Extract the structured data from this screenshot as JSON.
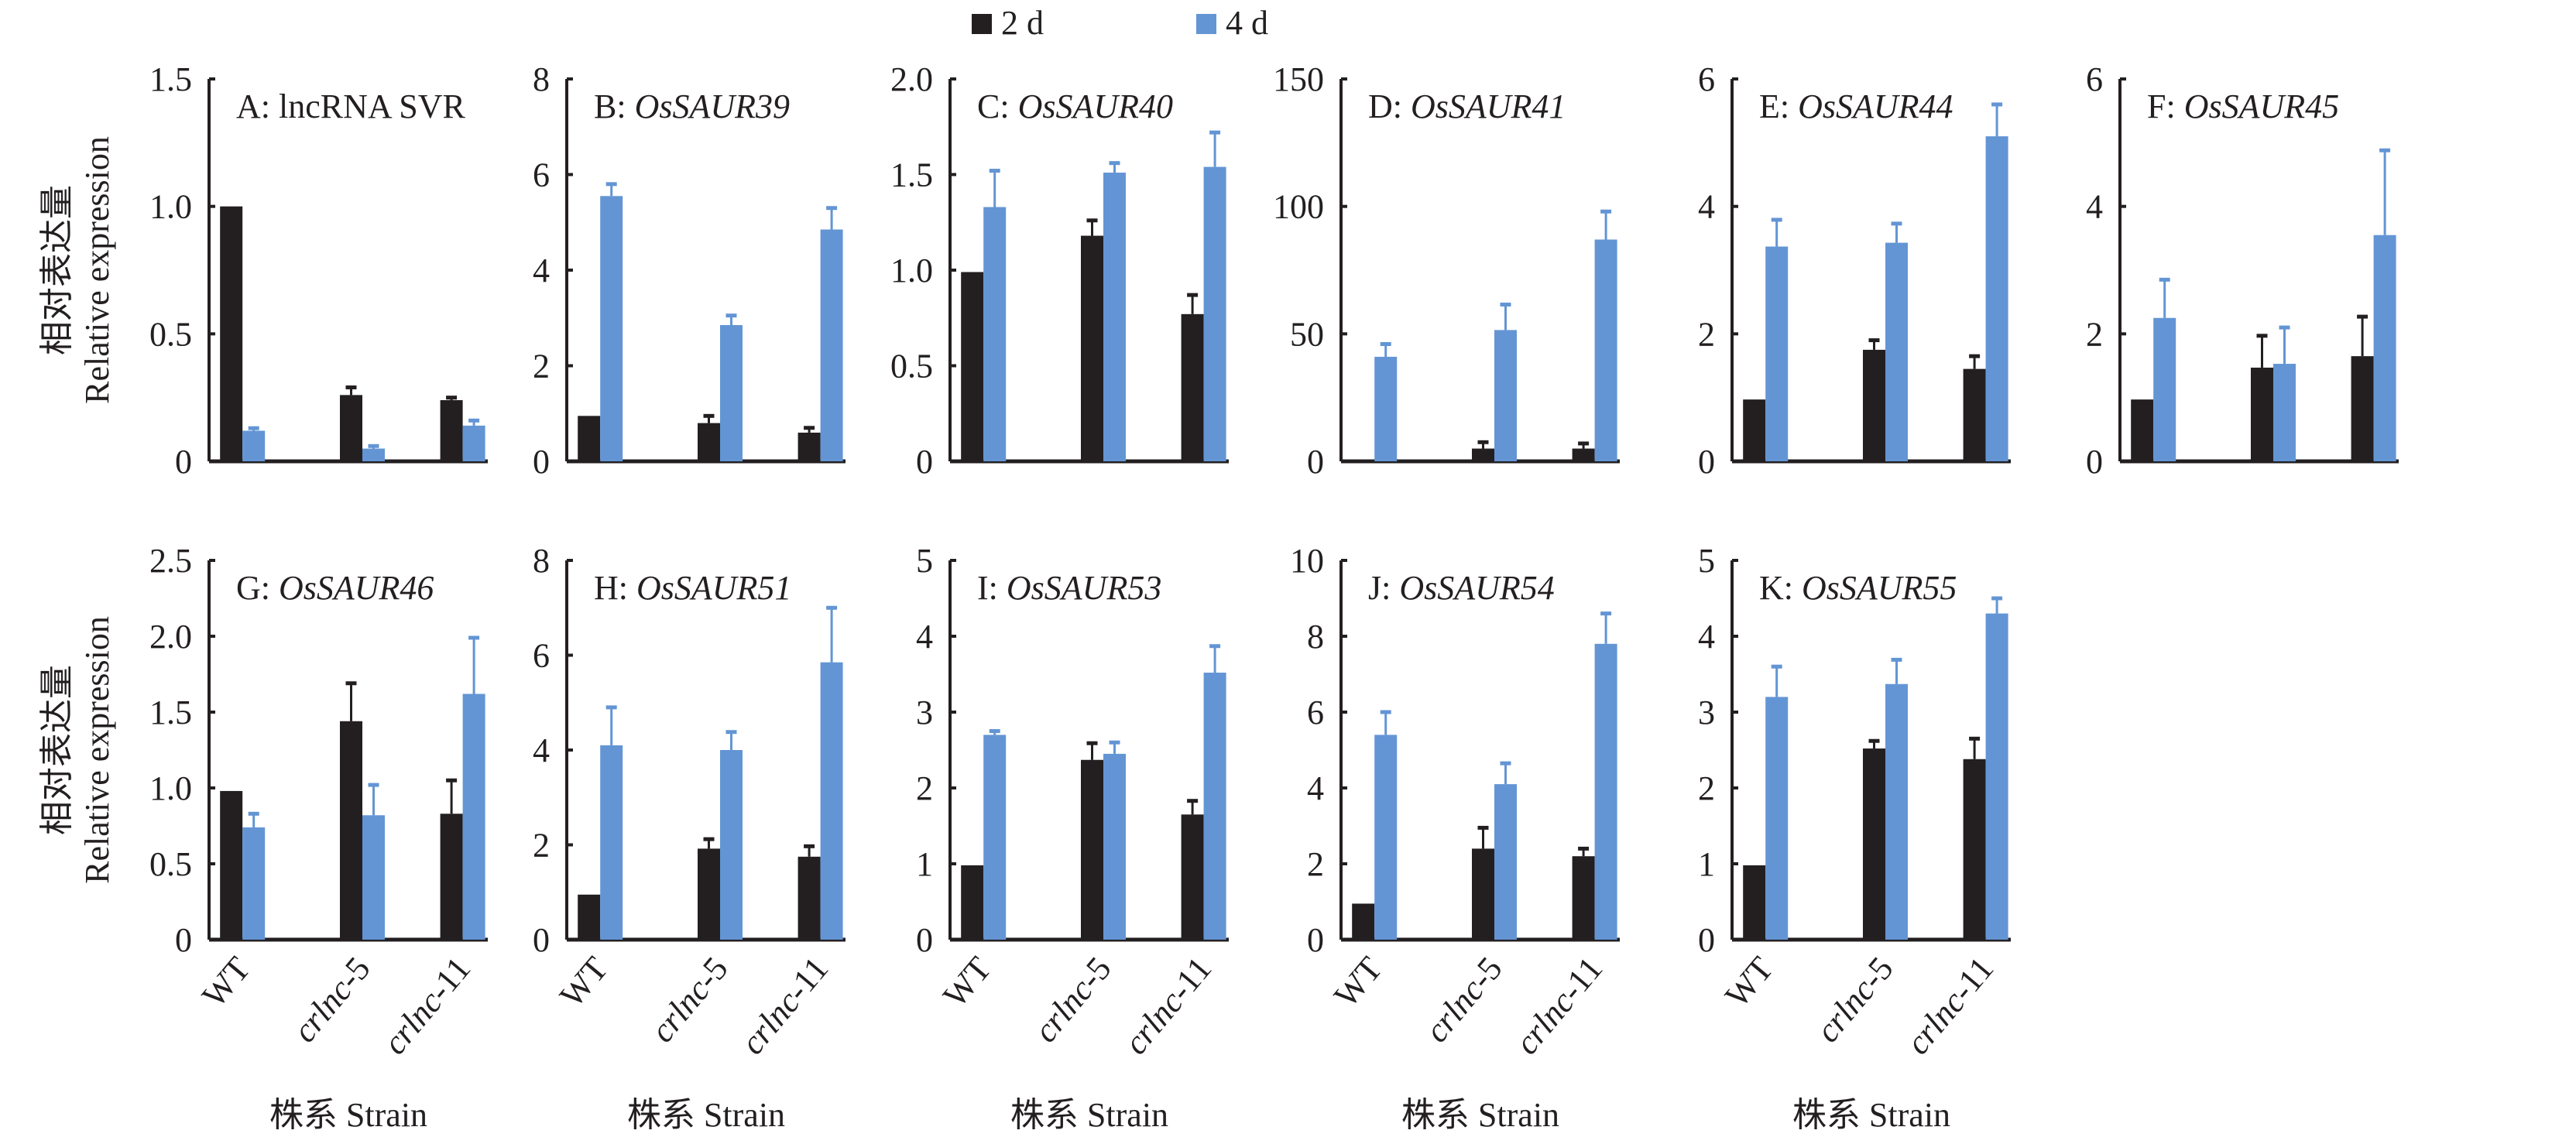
{
  "colors": {
    "2d": "#231f20",
    "4d": "#6395d4",
    "axis": "#231f20"
  },
  "legend": [
    {
      "label": "2 d",
      "color": "#231f20"
    },
    {
      "label": "4 d",
      "color": "#6395d4"
    }
  ],
  "y_label": {
    "zh": "相对表达量",
    "en": "Relative expression"
  },
  "x_label": "株系 Strain",
  "chart_data": [
    {
      "type": "bar",
      "title_prefix": "A: ",
      "title_gene": "lncRNA SVR",
      "gene_italic": false,
      "categories": [
        "WT",
        "crlnc-5",
        "crlnc-11"
      ],
      "ylim": [
        0,
        1.5
      ],
      "yticks": [
        "0",
        "0.5",
        "1.0",
        "1.5"
      ],
      "series": [
        {
          "name": "2 d",
          "values": [
            1.0,
            0.26,
            0.24
          ],
          "errors": [
            0,
            0.03,
            0.01
          ]
        },
        {
          "name": "4 d",
          "values": [
            0.12,
            0.05,
            0.14
          ],
          "errors": [
            0.01,
            0.01,
            0.02
          ]
        }
      ]
    },
    {
      "type": "bar",
      "title_prefix": "B: ",
      "title_gene": "OsSAUR39",
      "gene_italic": true,
      "categories": [
        "WT",
        "crlnc-5",
        "crlnc-11"
      ],
      "ylim": [
        0,
        8
      ],
      "yticks": [
        "0",
        "2",
        "4",
        "6",
        "8"
      ],
      "series": [
        {
          "name": "2 d",
          "values": [
            0.95,
            0.8,
            0.6
          ],
          "errors": [
            0,
            0.15,
            0.1
          ]
        },
        {
          "name": "4 d",
          "values": [
            5.55,
            2.85,
            4.85
          ],
          "errors": [
            0.25,
            0.2,
            0.45
          ]
        }
      ]
    },
    {
      "type": "bar",
      "title_prefix": "C: ",
      "title_gene": "OsSAUR40",
      "gene_italic": true,
      "categories": [
        "WT",
        "crlnc-5",
        "crlnc-11"
      ],
      "ylim": [
        0,
        2.0
      ],
      "yticks": [
        "0",
        "0.5",
        "1.0",
        "1.5",
        "2.0"
      ],
      "series": [
        {
          "name": "2 d",
          "values": [
            0.99,
            1.18,
            0.77
          ],
          "errors": [
            0,
            0.08,
            0.1
          ]
        },
        {
          "name": "4 d",
          "values": [
            1.33,
            1.51,
            1.54
          ],
          "errors": [
            0.19,
            0.05,
            0.18
          ]
        }
      ]
    },
    {
      "type": "bar",
      "title_prefix": "D: ",
      "title_gene": "OsSAUR41",
      "gene_italic": true,
      "categories": [
        "WT",
        "crlnc-5",
        "crlnc-11"
      ],
      "ylim": [
        0,
        150
      ],
      "yticks": [
        "0",
        "50",
        "100",
        "150"
      ],
      "series": [
        {
          "name": "2 d",
          "values": [
            0.5,
            5,
            5
          ],
          "errors": [
            0,
            2.5,
            2
          ]
        },
        {
          "name": "4 d",
          "values": [
            41,
            51.5,
            87
          ],
          "errors": [
            5,
            10,
            11
          ]
        }
      ]
    },
    {
      "type": "bar",
      "title_prefix": "E: ",
      "title_gene": "OsSAUR44",
      "gene_italic": true,
      "categories": [
        "WT",
        "crlnc-5",
        "crlnc-11"
      ],
      "ylim": [
        0,
        6
      ],
      "yticks": [
        "0",
        "2",
        "4",
        "6"
      ],
      "series": [
        {
          "name": "2 d",
          "values": [
            0.97,
            1.75,
            1.45
          ],
          "errors": [
            0,
            0.15,
            0.2
          ]
        },
        {
          "name": "4 d",
          "values": [
            3.37,
            3.43,
            5.1
          ],
          "errors": [
            0.42,
            0.3,
            0.5
          ]
        }
      ]
    },
    {
      "type": "bar",
      "title_prefix": "F: ",
      "title_gene": "OsSAUR45",
      "gene_italic": true,
      "categories": [
        "WT",
        "crlnc-5",
        "crlnc-11"
      ],
      "ylim": [
        0,
        6
      ],
      "yticks": [
        "0",
        "2",
        "4",
        "6"
      ],
      "series": [
        {
          "name": "2 d",
          "values": [
            0.97,
            1.47,
            1.65
          ],
          "errors": [
            0,
            0.5,
            0.62
          ]
        },
        {
          "name": "4 d",
          "values": [
            2.25,
            1.53,
            3.55
          ],
          "errors": [
            0.6,
            0.57,
            1.33
          ]
        }
      ]
    },
    {
      "type": "bar",
      "title_prefix": "G: ",
      "title_gene": "OsSAUR46",
      "gene_italic": true,
      "categories": [
        "WT",
        "crlnc-5",
        "crlnc-11"
      ],
      "ylim": [
        0,
        2.5
      ],
      "yticks": [
        "0",
        "0.5",
        "1.0",
        "1.5",
        "2.0",
        "2.5"
      ],
      "series": [
        {
          "name": "2 d",
          "values": [
            0.98,
            1.44,
            0.83
          ],
          "errors": [
            0,
            0.25,
            0.22
          ]
        },
        {
          "name": "4 d",
          "values": [
            0.74,
            0.82,
            1.62
          ],
          "errors": [
            0.09,
            0.2,
            0.37
          ]
        }
      ]
    },
    {
      "type": "bar",
      "title_prefix": "H: ",
      "title_gene": "OsSAUR51",
      "gene_italic": true,
      "categories": [
        "WT",
        "crlnc-5",
        "crlnc-11"
      ],
      "ylim": [
        0,
        8
      ],
      "yticks": [
        "0",
        "2",
        "4",
        "6",
        "8"
      ],
      "series": [
        {
          "name": "2 d",
          "values": [
            0.95,
            1.92,
            1.75
          ],
          "errors": [
            0,
            0.2,
            0.22
          ]
        },
        {
          "name": "4 d",
          "values": [
            4.1,
            4.0,
            5.85
          ],
          "errors": [
            0.8,
            0.38,
            1.15
          ]
        }
      ]
    },
    {
      "type": "bar",
      "title_prefix": "I: ",
      "title_gene": "OsSAUR53",
      "gene_italic": true,
      "categories": [
        "WT",
        "crlnc-5",
        "crlnc-11"
      ],
      "ylim": [
        0,
        5
      ],
      "yticks": [
        "0",
        "1",
        "2",
        "3",
        "4",
        "5"
      ],
      "series": [
        {
          "name": "2 d",
          "values": [
            0.98,
            2.37,
            1.65
          ],
          "errors": [
            0,
            0.22,
            0.18
          ]
        },
        {
          "name": "4 d",
          "values": [
            2.7,
            2.45,
            3.52
          ],
          "errors": [
            0.05,
            0.15,
            0.35
          ]
        }
      ]
    },
    {
      "type": "bar",
      "title_prefix": "J: ",
      "title_gene": "OsSAUR54",
      "gene_italic": true,
      "categories": [
        "WT",
        "crlnc-5",
        "crlnc-11"
      ],
      "ylim": [
        0,
        10
      ],
      "yticks": [
        "0",
        "2",
        "4",
        "6",
        "8",
        "10"
      ],
      "series": [
        {
          "name": "2 d",
          "values": [
            0.95,
            2.4,
            2.2
          ],
          "errors": [
            0,
            0.55,
            0.2
          ]
        },
        {
          "name": "4 d",
          "values": [
            5.4,
            4.1,
            7.8
          ],
          "errors": [
            0.6,
            0.55,
            0.8
          ]
        }
      ]
    },
    {
      "type": "bar",
      "title_prefix": "K: ",
      "title_gene": "OsSAUR55",
      "gene_italic": true,
      "categories": [
        "WT",
        "crlnc-5",
        "crlnc-11"
      ],
      "ylim": [
        0,
        5
      ],
      "yticks": [
        "0",
        "1",
        "2",
        "3",
        "4",
        "5"
      ],
      "series": [
        {
          "name": "2 d",
          "values": [
            0.98,
            2.52,
            2.38
          ],
          "errors": [
            0,
            0.1,
            0.27
          ]
        },
        {
          "name": "4 d",
          "values": [
            3.2,
            3.37,
            4.3
          ],
          "errors": [
            0.4,
            0.32,
            0.2
          ]
        }
      ]
    }
  ]
}
